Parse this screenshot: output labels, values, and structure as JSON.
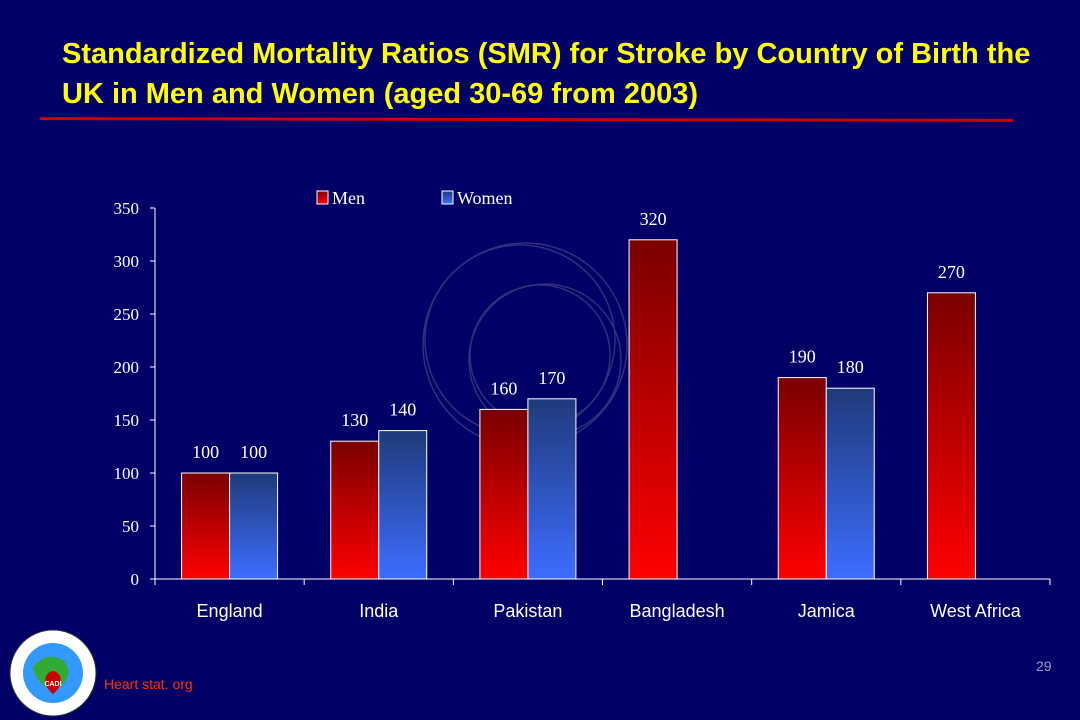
{
  "title": "Standardized Mortality Ratios (SMR) for Stroke by Country of Birth the UK in Men and Women (aged 30-69 from 2003)",
  "page_number": "29",
  "source": "Heart stat. org",
  "logo": {
    "ring_text_top": "CORONARY ARTERY DISEASE IN ASIAN INDIANS",
    "ring_text_bottom": "CADI RESEARCH FOUNDATION",
    "center_text": "CADI"
  },
  "colors": {
    "background": "#000066",
    "title": "#ffff00",
    "men": "#cc0000",
    "women": "#3366ff",
    "source": "#ff3300"
  },
  "chart_data": {
    "type": "bar",
    "categories": [
      "England",
      "India",
      "Pakistan",
      "Bangladesh",
      "Jamica",
      "West Africa"
    ],
    "series": [
      {
        "name": "Men",
        "values": [
          100,
          130,
          160,
          320,
          190,
          270
        ]
      },
      {
        "name": "Women",
        "values": [
          100,
          140,
          170,
          null,
          180,
          null
        ]
      }
    ],
    "ylim": [
      0,
      350
    ],
    "yticks": [
      0,
      50,
      100,
      150,
      200,
      250,
      300,
      350
    ],
    "data_labels": true,
    "legend_placement": "top",
    "grid": false
  }
}
